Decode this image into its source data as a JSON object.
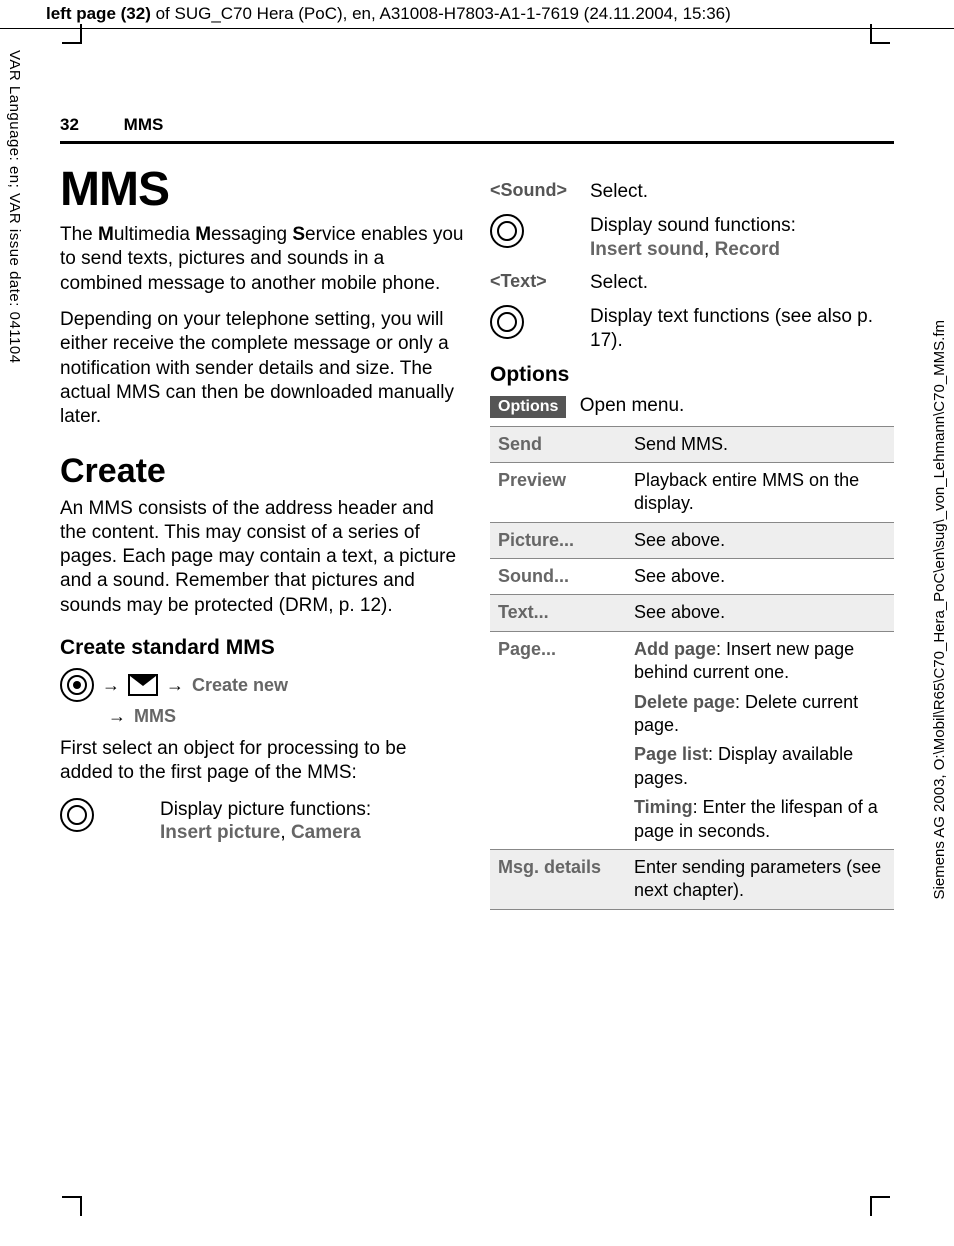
{
  "top_header": {
    "prefix": "left page (32)",
    "rest": " of SUG_C70 Hera (PoC), en, A31008-H7803-A1-1-7619 (24.11.2004, 15:36)"
  },
  "left_margin_text": "VAR Language: en; VAR issue date: 041104",
  "right_margin_text": "Siemens AG 2003, O:\\Mobil\\R65\\C70_Hera_PoC\\en\\sug\\_von_Lehmann\\C70_MMS.fm",
  "running_head": {
    "page_num": "32",
    "title": "MMS"
  },
  "left_col": {
    "title": "MMS",
    "intro1_parts": [
      "The ",
      "M",
      "ultimedia ",
      "M",
      "essaging ",
      "S",
      "ervice enables you to send texts, pictures and sounds in a combined message to another mobile phone."
    ],
    "intro2": "Depending on your telephone setting, you will either receive the complete message or only a notification with sender details and size. The actual MMS can then be downloaded manually later.",
    "create_h": "Create",
    "create_p": "An MMS consists of the address header and the content. This may consist of a series of pages. Each page may contain a text, a picture and a sound. Remember that pictures and sounds may be protected (DRM, p. 12).",
    "std_h": "Create standard MMS",
    "nav1": "Create new",
    "nav2": "MMS",
    "first_select": "First select an object for processing to be added to the first page of the MMS:",
    "pic_fn_1": "Display picture functions:",
    "pic_fn_2a": "Insert picture",
    "pic_fn_2b": "Camera"
  },
  "right_col": {
    "sound_label": "<Sound>",
    "sound_select": "Select.",
    "sound_fn_1": "Display sound functions:",
    "sound_fn_2a": "Insert sound",
    "sound_fn_2b": "Record",
    "text_label": "<Text>",
    "text_select": "Select.",
    "text_fn_1": "Display text functions (see also p. 17).",
    "options_h": "Options",
    "options_badge": "Options",
    "options_open": "Open menu.",
    "table": [
      {
        "label": "Send",
        "desc": [
          {
            "t": "Send MMS."
          }
        ],
        "shaded": true
      },
      {
        "label": "Preview",
        "desc": [
          {
            "t": "Playback entire MMS on the display."
          }
        ],
        "shaded": false
      },
      {
        "label": "Picture...",
        "desc": [
          {
            "t": "See above."
          }
        ],
        "shaded": true
      },
      {
        "label": "Sound...",
        "desc": [
          {
            "t": "See above."
          }
        ],
        "shaded": false
      },
      {
        "label": "Text...",
        "desc": [
          {
            "t": "See above."
          }
        ],
        "shaded": true
      },
      {
        "label": "Page...",
        "desc": [
          {
            "b": "Add page",
            "t": ": Insert new page behind current one."
          },
          {
            "b": "Delete page",
            "t": ": Delete current page."
          },
          {
            "b": "Page list",
            "t": ": Display available pages."
          },
          {
            "b": "Timing",
            "t": ": Enter the lifespan of a page in seconds."
          }
        ],
        "shaded": false
      },
      {
        "label": "Msg. details",
        "desc": [
          {
            "t": "Enter sending parameters (see next chapter)."
          }
        ],
        "shaded": true
      }
    ]
  }
}
